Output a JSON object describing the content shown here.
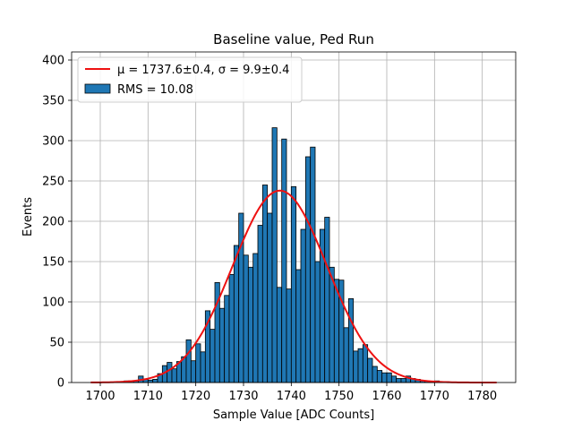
{
  "chart_data": {
    "type": "bar",
    "title": "Baseline value, Ped Run",
    "xlabel": "Sample Value [ADC Counts]",
    "ylabel": "Events",
    "xlim": [
      1694,
      1787
    ],
    "ylim": [
      0,
      410
    ],
    "xticks": [
      1700,
      1710,
      1720,
      1730,
      1740,
      1750,
      1760,
      1770,
      1780
    ],
    "yticks": [
      0,
      50,
      100,
      150,
      200,
      250,
      300,
      350,
      400
    ],
    "grid": true,
    "legend_position": "upper-left",
    "bin_width": 1,
    "bin_starts": [
      1703,
      1704,
      1705,
      1706,
      1707,
      1708,
      1709,
      1710,
      1711,
      1712,
      1713,
      1714,
      1715,
      1716,
      1717,
      1718,
      1719,
      1720,
      1721,
      1722,
      1723,
      1724,
      1725,
      1726,
      1727,
      1728,
      1729,
      1730,
      1731,
      1732,
      1733,
      1734,
      1735,
      1736,
      1737,
      1738,
      1739,
      1740,
      1741,
      1742,
      1743,
      1744,
      1745,
      1746,
      1747,
      1748,
      1749,
      1750,
      1751,
      1752,
      1753,
      1754,
      1755,
      1756,
      1757,
      1758,
      1759,
      1760,
      1761,
      1762,
      1763,
      1764,
      1765,
      1766,
      1767,
      1768,
      1769,
      1770,
      1771,
      1772
    ],
    "counts": [
      1,
      1,
      2,
      2,
      2,
      8,
      4,
      3,
      4,
      11,
      21,
      25,
      17,
      26,
      32,
      53,
      27,
      48,
      38,
      89,
      66,
      124,
      92,
      108,
      134,
      170,
      210,
      158,
      143,
      160,
      195,
      245,
      210,
      316,
      118,
      302,
      116,
      243,
      140,
      190,
      280,
      292,
      150,
      190,
      205,
      143,
      128,
      127,
      68,
      104,
      39,
      42,
      47,
      30,
      20,
      15,
      12,
      12,
      8,
      5,
      5,
      8,
      5,
      4,
      2,
      2,
      1,
      2,
      1,
      1
    ],
    "fit_curve": {
      "mu": 1737.6,
      "sigma": 9.9,
      "amplitude": 238,
      "x_range": [
        1698,
        1783
      ]
    },
    "series": [
      {
        "name": "μ = 1737.6±0.4, σ = 9.9±0.4",
        "kind": "line",
        "color": "#ee1111"
      },
      {
        "name": "RMS = 10.08",
        "kind": "bar",
        "color": "#1f77b4"
      }
    ],
    "colors": {
      "bar_fill": "#1f77b4",
      "bar_edge": "#000000",
      "fit_line": "#ee1111",
      "grid": "#b0b0b0"
    }
  }
}
